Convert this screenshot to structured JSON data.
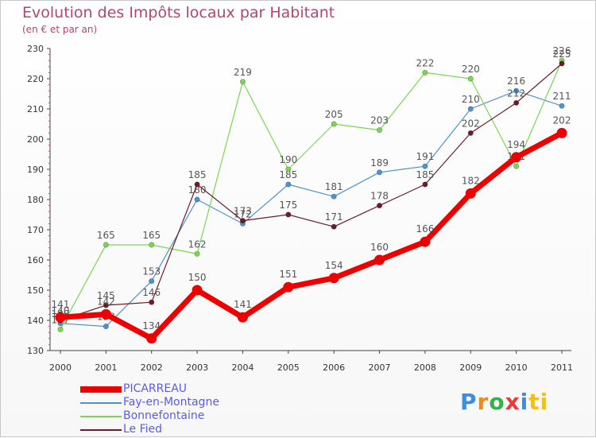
{
  "title": "Evolution des Impôts locaux par Habitant",
  "subtitle": "(en € et par an)",
  "logo": "Proxiti",
  "chart_data": {
    "type": "line",
    "title": "Evolution des Impôts locaux par Habitant",
    "subtitle": "(en € et par an)",
    "xlabel": "",
    "ylabel": "",
    "ylim": [
      130,
      230
    ],
    "yticks": [
      130,
      140,
      150,
      160,
      170,
      180,
      190,
      200,
      210,
      220,
      230
    ],
    "categories": [
      "2000",
      "2001",
      "2002",
      "2003",
      "2004",
      "2005",
      "2006",
      "2007",
      "2008",
      "2009",
      "2010",
      "2011"
    ],
    "grid": false,
    "legend_position": "bottom-left",
    "series": [
      {
        "name": "Fay-en-Montagne",
        "color": "#4f92cf",
        "values": [
          139,
          138,
          153,
          180,
          172,
          185,
          181,
          189,
          191,
          210,
          216,
          211
        ]
      },
      {
        "name": "Bonnefontaine",
        "color": "#7bd653",
        "values": [
          137,
          165,
          165,
          162,
          219,
          190,
          205,
          203,
          222,
          220,
          191,
          226
        ]
      },
      {
        "name": "Le Fied",
        "color": "#6b1c2a",
        "values": [
          140,
          145,
          146,
          185,
          173,
          175,
          171,
          178,
          185,
          202,
          212,
          225
        ]
      },
      {
        "name": "PICARREAU",
        "color": "#ee0000",
        "values": [
          141,
          142,
          134,
          150,
          141,
          151,
          154,
          160,
          166,
          182,
          194,
          202
        ]
      }
    ],
    "legend_order": [
      "PICARREAU",
      "Fay-en-Montagne",
      "Bonnefontaine",
      "Le Fied"
    ]
  }
}
